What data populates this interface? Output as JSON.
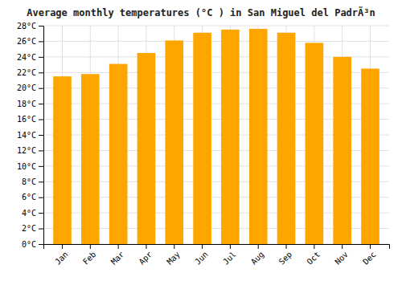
{
  "chart_data": {
    "type": "bar",
    "title": "Average monthly temperatures (°C ) in San Miguel del PadrÃ³n",
    "categories": [
      "Jan",
      "Feb",
      "Mar",
      "Apr",
      "May",
      "Jun",
      "Jul",
      "Aug",
      "Sep",
      "Oct",
      "Nov",
      "Dec"
    ],
    "values": [
      21.5,
      21.8,
      23.1,
      24.5,
      26.1,
      27.1,
      27.5,
      27.6,
      27.1,
      25.8,
      24.0,
      22.5
    ],
    "color": "#FFA500",
    "ylim": [
      0,
      28
    ],
    "yticks": [
      {
        "value": 0,
        "label": "0°C"
      },
      {
        "value": 2,
        "label": "2°C"
      },
      {
        "value": 4,
        "label": "4°C"
      },
      {
        "value": 6,
        "label": "6°C"
      },
      {
        "value": 8,
        "label": "8°C"
      },
      {
        "value": 10,
        "label": "10°C"
      },
      {
        "value": 12,
        "label": "12°C"
      },
      {
        "value": 14,
        "label": "14°C"
      },
      {
        "value": 16,
        "label": "16°C"
      },
      {
        "value": 18,
        "label": "18°C"
      },
      {
        "value": 20,
        "label": "20°C"
      },
      {
        "value": 22,
        "label": "22°C"
      },
      {
        "value": 24,
        "label": "24°C"
      },
      {
        "value": 26,
        "label": "26°C"
      },
      {
        "value": 28,
        "label": "28°C"
      }
    ],
    "grid": true
  }
}
